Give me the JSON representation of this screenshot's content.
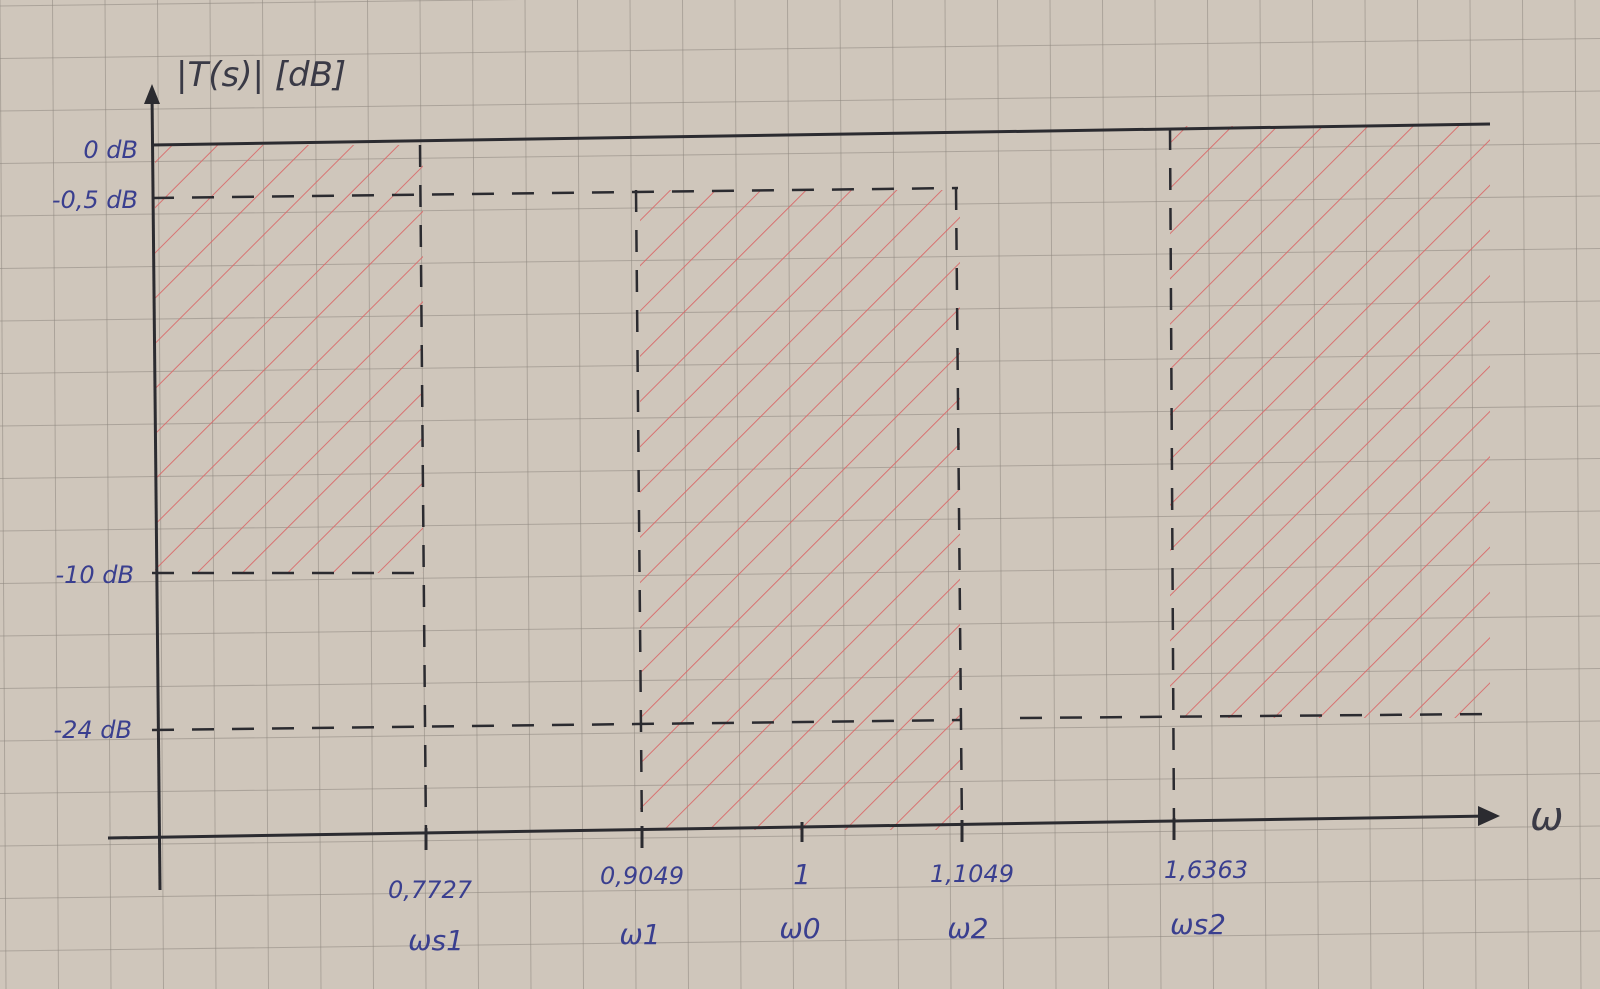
{
  "axes": {
    "y_label": "|T(s)| [dB]",
    "x_label": "ω"
  },
  "y_ticks": [
    {
      "value": 0,
      "label": "0 dB"
    },
    {
      "value": -0.5,
      "label": "-0,5 dB"
    },
    {
      "value": -10,
      "label": "-10 dB"
    },
    {
      "value": -24,
      "label": "-24 dB"
    }
  ],
  "x_ticks": [
    {
      "value": 0.7727,
      "label": "0,7727",
      "symbol": "ωs1"
    },
    {
      "value": 0.9049,
      "label": "0,9049",
      "symbol": "ω1"
    },
    {
      "value": 1,
      "label": "1",
      "symbol": "ω0"
    },
    {
      "value": 1.1049,
      "label": "1,1049",
      "symbol": "ω2"
    },
    {
      "value": 1.6363,
      "label": "1,6363",
      "symbol": "ωs2"
    }
  ],
  "regions": [
    {
      "name": "lower-stopband",
      "from": "0",
      "to": "ωs1",
      "between_db": [
        0,
        -10
      ]
    },
    {
      "name": "passband",
      "from": "ω1",
      "to": "ω2",
      "between_db": [
        -0.5,
        -100
      ]
    },
    {
      "name": "upper-stopband",
      "from": "ωs2",
      "to": "end",
      "between_db": [
        0,
        -24
      ]
    }
  ],
  "colors": {
    "paper": "#cfc6bb",
    "grid": "#8f8880",
    "ink": "#2b2b30",
    "hatch": "#d96a6a",
    "label_ink": "#3a3f8f"
  }
}
